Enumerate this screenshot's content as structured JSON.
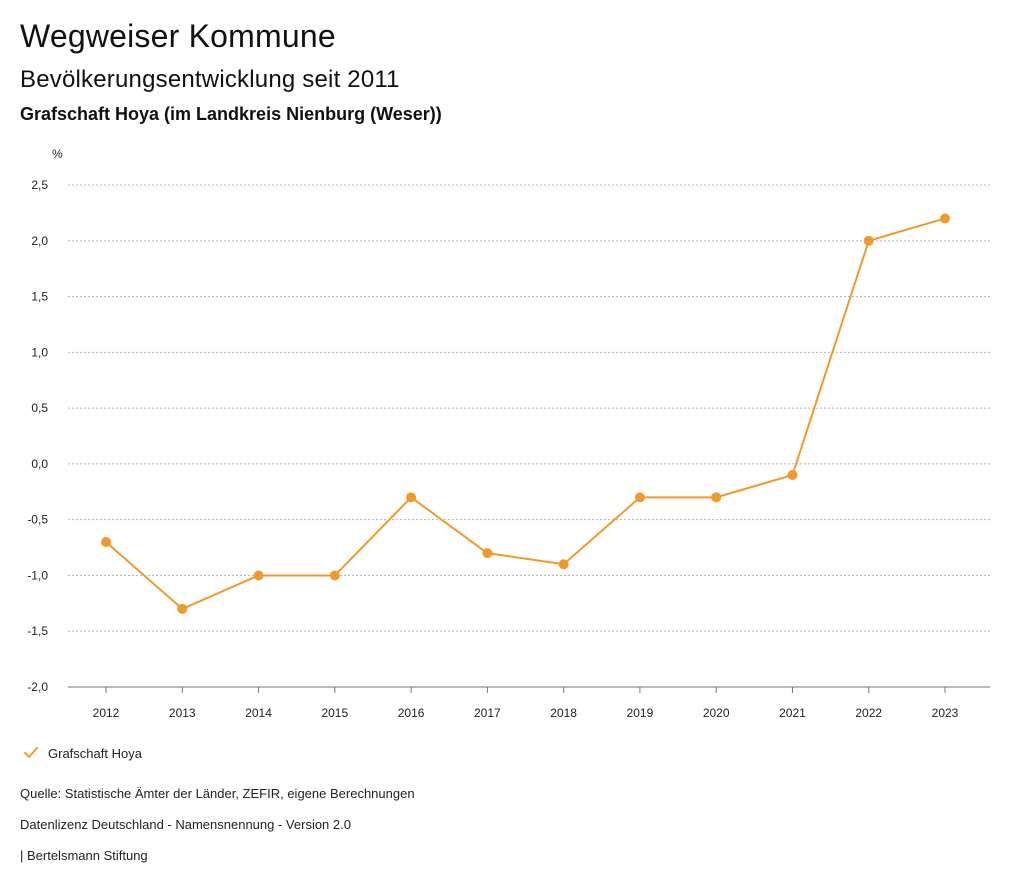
{
  "header": {
    "title": "Wegweiser Kommune",
    "subtitle": "Bevölkerungsentwicklung seit 2011",
    "region": "Grafschaft Hoya (im Landkreis Nienburg (Weser))"
  },
  "chart_data": {
    "type": "line",
    "ylabel": "%",
    "xlabel": "",
    "categories": [
      "2012",
      "2013",
      "2014",
      "2015",
      "2016",
      "2017",
      "2018",
      "2019",
      "2020",
      "2021",
      "2022",
      "2023"
    ],
    "series": [
      {
        "name": "Grafschaft Hoya",
        "values": [
          -0.7,
          -1.3,
          -1.0,
          -1.0,
          -0.3,
          -0.8,
          -0.9,
          -0.3,
          -0.3,
          -0.1,
          2.0,
          2.2
        ]
      }
    ],
    "ylim": [
      -2.0,
      2.5
    ],
    "yticks": [
      2.5,
      2.0,
      1.5,
      1.0,
      0.5,
      0.0,
      -0.5,
      -1.0,
      -1.5,
      -2.0
    ],
    "ytick_labels": [
      "2,5",
      "2,0",
      "1,5",
      "1,0",
      "0,5",
      "0,0",
      "-0,5",
      "-1,0",
      "-1,5",
      "-2,0"
    ],
    "grid": true,
    "series_color": "#F0992E",
    "legend_position": "bottom-left"
  },
  "legend": {
    "label": "Grafschaft Hoya",
    "icon": "check-icon"
  },
  "footer": {
    "source": "Quelle: Statistische Ämter der Länder, ZEFIR, eigene Berechnungen",
    "license": "Datenlizenz Deutschland - Namensnennung - Version 2.0",
    "publisher": "| Bertelsmann Stiftung"
  }
}
